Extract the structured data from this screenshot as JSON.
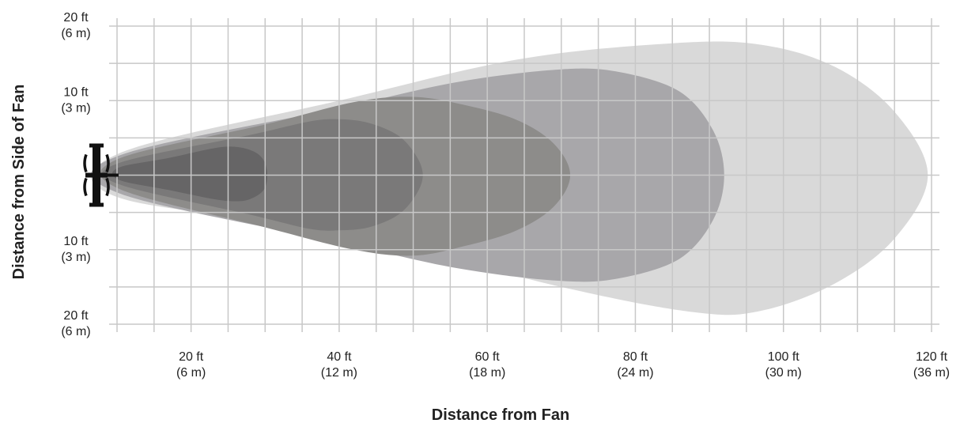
{
  "chart_data": {
    "type": "area",
    "title": "",
    "xlabel": "Distance from Fan",
    "ylabel": "Distance from Side of Fan",
    "xlim": [
      10,
      120
    ],
    "ylim": [
      -20,
      20
    ],
    "grid": true,
    "x_ticks": [
      {
        "value": 20,
        "label": "20 ft",
        "sublabel": "(6 m)"
      },
      {
        "value": 40,
        "label": "40 ft",
        "sublabel": "(12 m)"
      },
      {
        "value": 60,
        "label": "60 ft",
        "sublabel": "(18 m)"
      },
      {
        "value": 80,
        "label": "80 ft",
        "sublabel": "(24 m)"
      },
      {
        "value": 100,
        "label": "100 ft",
        "sublabel": "(30 m)"
      },
      {
        "value": 120,
        "label": "120 ft",
        "sublabel": "(36 m)"
      }
    ],
    "y_ticks": [
      {
        "value": 20,
        "label": "20 ft",
        "sublabel": "(6 m)"
      },
      {
        "value": 10,
        "label": "10 ft",
        "sublabel": "(3 m)"
      },
      {
        "value": -10,
        "label": "10 ft",
        "sublabel": "(3 m)"
      },
      {
        "value": -20,
        "label": "20 ft",
        "sublabel": "(6 m)"
      }
    ],
    "series": [
      {
        "color": "#d9d9d9",
        "points": [
          [
            10.2,
            2.9
          ],
          [
            40,
            10
          ],
          [
            64,
            15.5
          ],
          [
            85,
            17.7
          ],
          [
            97,
            17.5
          ],
          [
            107,
            14.5
          ],
          [
            115,
            8.5
          ],
          [
            119.5,
            0
          ],
          [
            115,
            -8.5
          ],
          [
            107,
            -14.5
          ],
          [
            97,
            -18.2
          ],
          [
            88,
            -18.4
          ],
          [
            70,
            -15
          ],
          [
            40,
            -7.6
          ],
          [
            10.2,
            -3.0
          ]
        ]
      },
      {
        "color": "#a8a7aa",
        "points": [
          [
            10.2,
            2.6
          ],
          [
            40,
            9
          ],
          [
            56,
            12.5
          ],
          [
            70,
            14.2
          ],
          [
            78,
            13.8
          ],
          [
            86,
            11.2
          ],
          [
            90.5,
            6
          ],
          [
            92,
            0
          ],
          [
            90.5,
            -6
          ],
          [
            86,
            -11.2
          ],
          [
            78,
            -13.8
          ],
          [
            70,
            -14.2
          ],
          [
            56,
            -12.5
          ],
          [
            40,
            -9
          ],
          [
            10.2,
            -2.4
          ]
        ]
      },
      {
        "color": "#8d8c8a",
        "points": [
          [
            10.2,
            2.2
          ],
          [
            30,
            6.8
          ],
          [
            42,
            9.8
          ],
          [
            50,
            10.5
          ],
          [
            57,
            9.4
          ],
          [
            64,
            7.4
          ],
          [
            69,
            4.2
          ],
          [
            71.2,
            0
          ],
          [
            69,
            -4.2
          ],
          [
            64,
            -7.4
          ],
          [
            57,
            -9.5
          ],
          [
            50,
            -10.8
          ],
          [
            42,
            -10
          ],
          [
            30,
            -7
          ],
          [
            10.2,
            -1.8
          ]
        ]
      },
      {
        "color": "#7a7979",
        "points": [
          [
            10.2,
            1.6
          ],
          [
            28,
            5.4
          ],
          [
            36,
            7.2
          ],
          [
            40,
            7.5
          ],
          [
            44,
            7
          ],
          [
            48,
            5.3
          ],
          [
            50.4,
            2.6
          ],
          [
            51.3,
            0
          ],
          [
            50.4,
            -2.6
          ],
          [
            48,
            -5.3
          ],
          [
            44,
            -7
          ],
          [
            40,
            -7.4
          ],
          [
            36,
            -7.2
          ],
          [
            28,
            -5.3
          ],
          [
            10.2,
            -1.2
          ]
        ]
      },
      {
        "color": "#666566",
        "points": [
          [
            10.2,
            1.0
          ],
          [
            17,
            2.3
          ],
          [
            23,
            3.6
          ],
          [
            26,
            3.8
          ],
          [
            28.4,
            3.2
          ],
          [
            29.8,
            2.0
          ],
          [
            30.3,
            0
          ],
          [
            29.8,
            -2.0
          ],
          [
            28,
            -3.2
          ],
          [
            26,
            -3.5
          ],
          [
            23,
            -3.2
          ],
          [
            17,
            -2
          ],
          [
            10.2,
            -0.6
          ]
        ]
      }
    ],
    "fan_icon": "fan-icon"
  }
}
